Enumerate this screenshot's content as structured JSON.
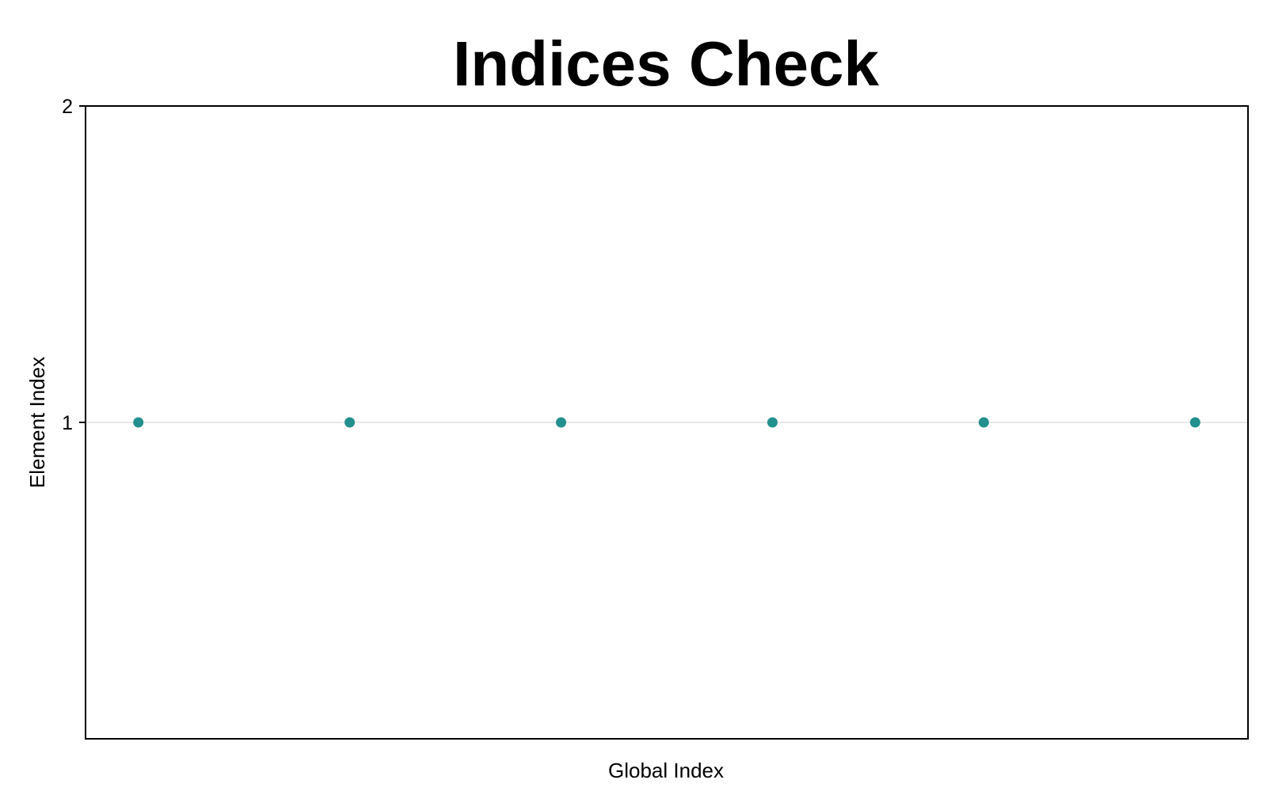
{
  "chart_data": {
    "type": "scatter",
    "title": "Indices Check",
    "xlabel": "Global Index",
    "ylabel": "Element Index",
    "x": [
      1,
      2,
      3,
      4,
      5,
      6
    ],
    "y": [
      1,
      1,
      1,
      1,
      1,
      1
    ],
    "xlim": [
      0.75,
      6.25
    ],
    "ylim": [
      0,
      2
    ],
    "yticks": [
      1,
      2
    ],
    "ytick_labels": [
      "1",
      "2"
    ],
    "xticks": [],
    "grid": "horizontal",
    "legend": "none",
    "colors": {
      "marker": "#23908e",
      "grid": "#e0e0e0",
      "axes": "#000000"
    }
  }
}
